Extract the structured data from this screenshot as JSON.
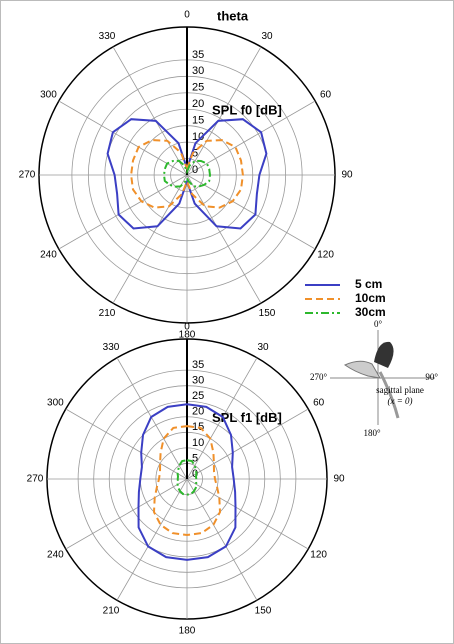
{
  "chart_data": [
    {
      "type": "polar",
      "title": "SPL f0 [dB]",
      "axis_label": "theta",
      "theta": [
        0,
        15,
        30,
        45,
        60,
        75,
        90,
        105,
        120,
        135,
        150,
        165,
        180,
        195,
        210,
        225,
        240,
        255,
        270,
        285,
        300,
        315,
        330,
        345
      ],
      "rlim": [
        0,
        45
      ],
      "rticks": [
        0,
        5,
        10,
        15,
        20,
        25,
        30,
        35
      ],
      "angle_ticks": [
        0,
        30,
        60,
        90,
        120,
        150,
        180,
        210,
        240,
        270,
        300,
        330
      ],
      "series": [
        {
          "name": "5 cm",
          "color": "#3b3fc4",
          "dash": "solid",
          "values": [
            2,
            10,
            19,
            24,
            26,
            25,
            22,
            22,
            24,
            23,
            18,
            9,
            2,
            9,
            18,
            23,
            24,
            22,
            22,
            25,
            26,
            24,
            19,
            10
          ]
        },
        {
          "name": "10cm",
          "color": "#f0902a",
          "dash": "dashed",
          "values": [
            2,
            7,
            12,
            15,
            17,
            17,
            17,
            17,
            16,
            14,
            11,
            6,
            2,
            6,
            11,
            14,
            16,
            17,
            17,
            17,
            17,
            15,
            12,
            7
          ]
        },
        {
          "name": "30cm",
          "color": "#2db82d",
          "dash": "dashdot",
          "values": [
            1,
            3,
            5,
            6,
            7,
            7,
            7,
            7,
            6,
            5,
            4,
            2,
            1,
            2,
            4,
            5,
            6,
            7,
            7,
            7,
            7,
            6,
            5,
            3
          ]
        }
      ]
    },
    {
      "type": "polar",
      "title": "SPL f1 [dB]",
      "theta": [
        0,
        15,
        30,
        45,
        60,
        75,
        90,
        105,
        120,
        135,
        150,
        165,
        180,
        195,
        210,
        225,
        240,
        255,
        270,
        285,
        300,
        315,
        330,
        345
      ],
      "rlim": [
        0,
        45
      ],
      "rticks": [
        0,
        5,
        10,
        15,
        20,
        25,
        30,
        35
      ],
      "angle_ticks": [
        0,
        30,
        60,
        90,
        120,
        150,
        180,
        210,
        240,
        270,
        300,
        330
      ],
      "series": [
        {
          "color": "#3b3fc4",
          "dash": "solid",
          "values": [
            24,
            24,
            23,
            20,
            17,
            15,
            15,
            16,
            18,
            22,
            25,
            26,
            26,
            26,
            25,
            22,
            18,
            16,
            15,
            15,
            17,
            20,
            23,
            24
          ]
        },
        {
          "color": "#f0902a",
          "dash": "dashed",
          "values": [
            17,
            17,
            15,
            12,
            10,
            9,
            9,
            10,
            12,
            15,
            17,
            18,
            18,
            18,
            17,
            15,
            12,
            10,
            9,
            9,
            10,
            12,
            15,
            17
          ]
        },
        {
          "color": "#2db82d",
          "dash": "dashdot",
          "values": [
            6,
            6,
            5,
            4,
            3.5,
            3,
            3,
            3,
            3.5,
            4,
            4.5,
            5,
            5,
            5,
            4.5,
            4,
            3.5,
            3,
            3,
            3,
            3.5,
            4,
            5,
            6
          ]
        }
      ]
    }
  ],
  "inset": {
    "top": "0°",
    "right": "90°",
    "bottom": "180°",
    "left": "270°",
    "label": "sagittal plane",
    "sublabel": "(x = 0)"
  }
}
